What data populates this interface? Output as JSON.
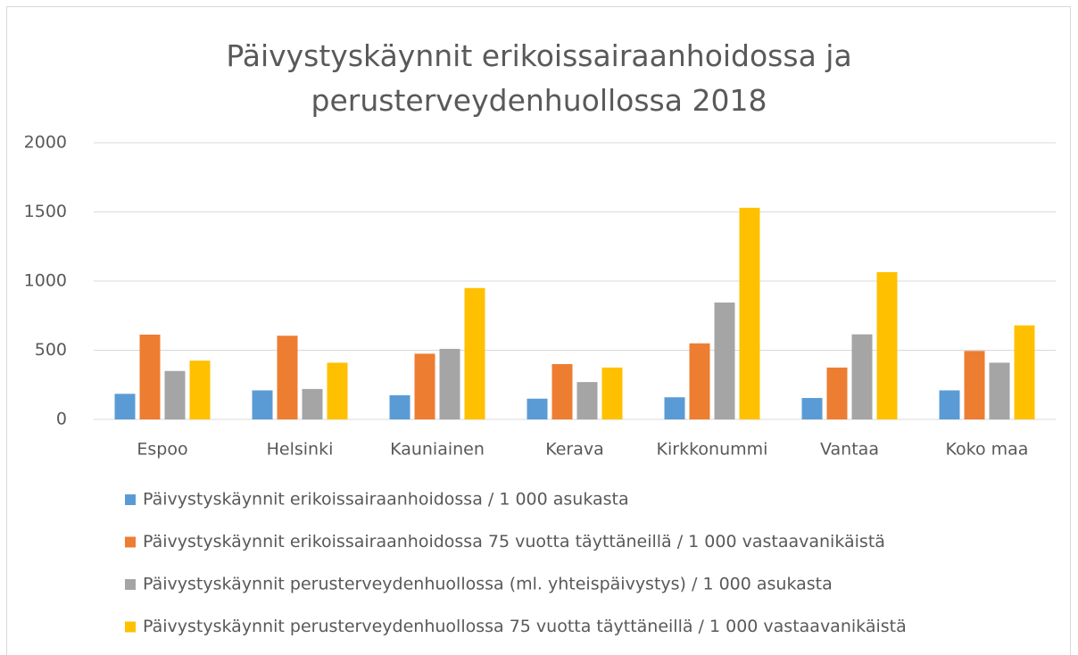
{
  "chart_data": {
    "type": "bar",
    "title": "Päivystyskäynnit erikoissairaanhoidossa ja perusterveydenhuollossa 2018",
    "categories": [
      "Espoo",
      "Helsinki",
      "Kauniainen",
      "Kerava",
      "Kirkkonummi",
      "Vantaa",
      "Koko maa"
    ],
    "series": [
      {
        "name": "Päivystyskäynnit erikoissairaanhoidossa / 1 000 asukasta",
        "color": "#5b9bd5",
        "values": [
          185,
          210,
          175,
          150,
          160,
          155,
          210
        ]
      },
      {
        "name": "Päivystyskäynnit erikoissairaanhoidossa 75 vuotta täyttäneillä / 1 000 vastaavanikäistä",
        "color": "#ed7d31",
        "values": [
          613,
          605,
          475,
          400,
          550,
          375,
          495
        ]
      },
      {
        "name": "Päivystyskäynnit perusterveydenhuollossa (ml. yhteispäivystys) / 1 000 asukasta",
        "color": "#a5a5a5",
        "values": [
          350,
          220,
          510,
          270,
          845,
          615,
          410
        ]
      },
      {
        "name": "Päivystyskäynnit perusterveydenhuollossa 75 vuotta täyttäneillä / 1 000 vastaavanikäistä",
        "color": "#ffc000",
        "values": [
          425,
          410,
          950,
          375,
          1530,
          1065,
          680
        ]
      }
    ],
    "ylim": [
      0,
      2000
    ],
    "yticks": [
      0,
      500,
      1000,
      1500,
      2000
    ],
    "grid": true,
    "legend": "bottom"
  }
}
